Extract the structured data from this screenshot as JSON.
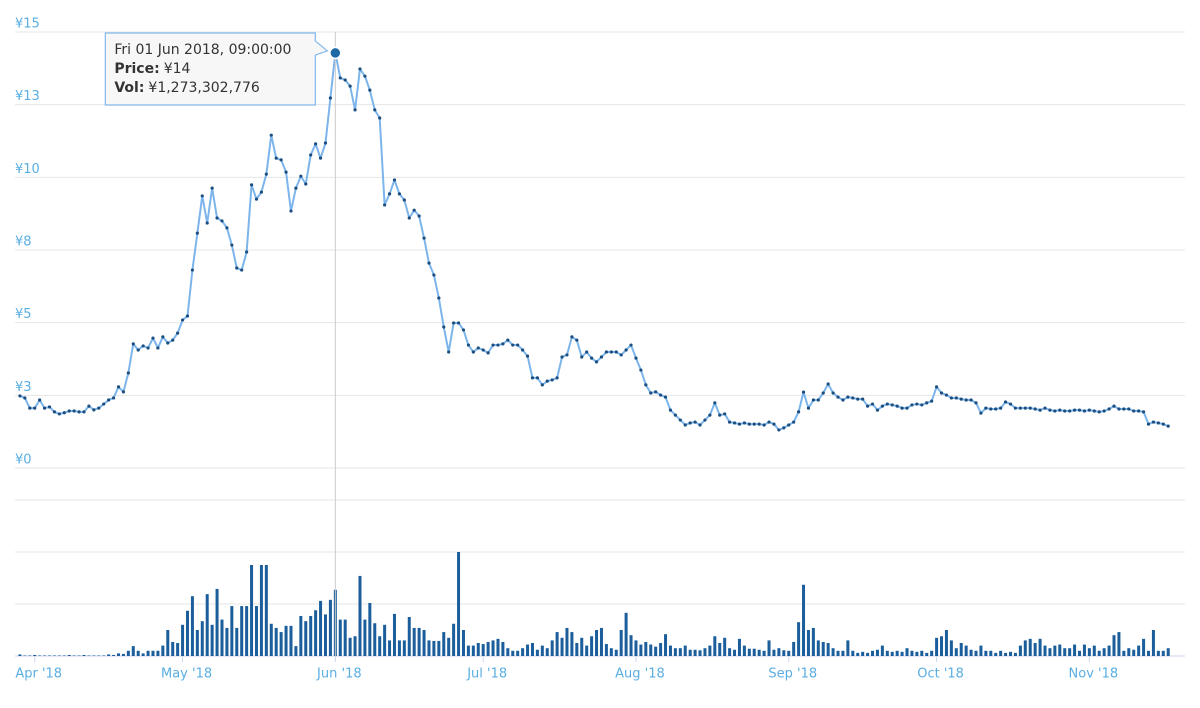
{
  "chart_data": {
    "type": "line",
    "x": [
      "2018-03-29",
      "2018-03-30",
      "2018-03-31",
      "2018-04-01",
      "2018-04-02",
      "2018-04-03",
      "2018-04-04",
      "2018-04-05",
      "2018-04-06",
      "2018-04-07",
      "2018-04-08",
      "2018-04-09",
      "2018-04-10",
      "2018-04-11",
      "2018-04-12",
      "2018-04-13",
      "2018-04-14",
      "2018-04-15",
      "2018-04-16",
      "2018-04-17",
      "2018-04-18",
      "2018-04-19",
      "2018-04-20",
      "2018-04-21",
      "2018-04-22",
      "2018-04-23",
      "2018-04-24",
      "2018-04-25",
      "2018-04-26",
      "2018-04-27",
      "2018-04-28",
      "2018-04-29",
      "2018-04-30",
      "2018-05-01",
      "2018-05-02",
      "2018-05-03",
      "2018-05-04",
      "2018-05-05",
      "2018-05-06",
      "2018-05-07",
      "2018-05-08",
      "2018-05-09",
      "2018-05-10",
      "2018-05-11",
      "2018-05-12",
      "2018-05-13",
      "2018-05-14",
      "2018-05-15",
      "2018-05-16",
      "2018-05-17",
      "2018-05-18",
      "2018-05-19",
      "2018-05-20",
      "2018-05-21",
      "2018-05-22",
      "2018-05-23",
      "2018-05-24",
      "2018-05-25",
      "2018-05-26",
      "2018-05-27",
      "2018-05-28",
      "2018-05-29",
      "2018-05-30",
      "2018-05-31",
      "2018-06-01",
      "2018-06-02",
      "2018-06-03",
      "2018-06-04",
      "2018-06-05",
      "2018-06-06",
      "2018-06-07",
      "2018-06-08",
      "2018-06-09",
      "2018-06-10",
      "2018-06-11",
      "2018-06-12",
      "2018-06-13",
      "2018-06-14",
      "2018-06-15",
      "2018-06-16",
      "2018-06-17",
      "2018-06-18",
      "2018-06-19",
      "2018-06-20",
      "2018-06-21",
      "2018-06-22",
      "2018-06-23",
      "2018-06-24",
      "2018-06-25",
      "2018-06-26",
      "2018-06-27",
      "2018-06-28",
      "2018-06-29",
      "2018-06-30",
      "2018-07-01",
      "2018-07-02",
      "2018-07-03",
      "2018-07-04",
      "2018-07-05",
      "2018-07-06",
      "2018-07-07",
      "2018-07-08",
      "2018-07-09",
      "2018-07-10",
      "2018-07-11",
      "2018-07-12",
      "2018-07-13",
      "2018-07-14",
      "2018-07-15",
      "2018-07-16",
      "2018-07-17",
      "2018-07-18",
      "2018-07-19",
      "2018-07-20",
      "2018-07-21",
      "2018-07-22",
      "2018-07-23",
      "2018-07-24",
      "2018-07-25",
      "2018-07-26",
      "2018-07-27",
      "2018-07-28",
      "2018-07-29",
      "2018-07-30",
      "2018-07-31",
      "2018-08-01",
      "2018-08-02",
      "2018-08-03",
      "2018-08-04",
      "2018-08-05",
      "2018-08-06",
      "2018-08-07",
      "2018-08-08",
      "2018-08-09",
      "2018-08-10",
      "2018-08-11",
      "2018-08-12",
      "2018-08-13",
      "2018-08-14",
      "2018-08-15",
      "2018-08-16",
      "2018-08-17",
      "2018-08-18",
      "2018-08-19",
      "2018-08-20",
      "2018-08-21",
      "2018-08-22",
      "2018-08-23",
      "2018-08-24",
      "2018-08-25",
      "2018-08-26",
      "2018-08-27",
      "2018-08-28",
      "2018-08-29",
      "2018-08-30",
      "2018-08-31",
      "2018-09-01",
      "2018-09-02",
      "2018-09-03",
      "2018-09-04",
      "2018-09-05",
      "2018-09-06",
      "2018-09-07",
      "2018-09-08",
      "2018-09-09",
      "2018-09-10",
      "2018-09-11",
      "2018-09-12",
      "2018-09-13",
      "2018-09-14",
      "2018-09-15",
      "2018-09-16",
      "2018-09-17",
      "2018-09-18",
      "2018-09-19",
      "2018-09-20",
      "2018-09-21",
      "2018-09-22",
      "2018-09-23",
      "2018-09-24",
      "2018-09-25",
      "2018-09-26",
      "2018-09-27",
      "2018-09-28",
      "2018-09-29",
      "2018-09-30",
      "2018-10-01",
      "2018-10-02",
      "2018-10-03",
      "2018-10-04",
      "2018-10-05",
      "2018-10-06",
      "2018-10-07",
      "2018-10-08",
      "2018-10-09",
      "2018-10-10",
      "2018-10-11",
      "2018-10-12",
      "2018-10-13",
      "2018-10-14",
      "2018-10-15",
      "2018-10-16",
      "2018-10-17",
      "2018-10-18",
      "2018-10-19",
      "2018-10-20",
      "2018-10-21",
      "2018-10-22",
      "2018-10-23",
      "2018-10-24",
      "2018-10-25",
      "2018-10-26",
      "2018-10-27",
      "2018-10-28",
      "2018-10-29",
      "2018-10-30",
      "2018-10-31",
      "2018-11-01",
      "2018-11-02",
      "2018-11-03",
      "2018-11-04",
      "2018-11-05",
      "2018-11-06",
      "2018-11-07",
      "2018-11-08",
      "2018-11-09",
      "2018-11-10",
      "2018-11-11",
      "2018-11-12",
      "2018-11-13",
      "2018-11-14",
      "2018-11-15",
      "2018-11-16",
      "2018-11-17"
    ],
    "xlim": [
      "2018-03-28",
      "2018-11-20"
    ],
    "xticks": [
      {
        "value": "2018-04-01",
        "label": "Apr '18"
      },
      {
        "value": "2018-05-01",
        "label": "May '18"
      },
      {
        "value": "2018-06-01",
        "label": "Jun '18"
      },
      {
        "value": "2018-07-01",
        "label": "Jul '18"
      },
      {
        "value": "2018-08-01",
        "label": "Aug '18"
      },
      {
        "value": "2018-09-01",
        "label": "Sep '18"
      },
      {
        "value": "2018-10-01",
        "label": "Oct '18"
      },
      {
        "value": "2018-11-01",
        "label": "Nov '18"
      }
    ],
    "ylim": [
      0,
      15
    ],
    "yticks": [
      {
        "value": 0,
        "label": "¥0"
      },
      {
        "value": 2.5,
        "label": "¥3"
      },
      {
        "value": 5,
        "label": "¥5"
      },
      {
        "value": 7.5,
        "label": "¥8"
      },
      {
        "value": 10,
        "label": "¥10"
      },
      {
        "value": 12.5,
        "label": "¥13"
      },
      {
        "value": 15,
        "label": "¥15"
      }
    ],
    "y2lim": [
      0,
      3000000000.0
    ],
    "y2ticks": [
      0,
      1000000000.0,
      2000000000.0,
      3000000000.0
    ],
    "grid": true,
    "series": [
      {
        "name": "Price:",
        "color": "#7cb5ec",
        "marker_color": "#1c4f80",
        "values": [
          2.48,
          2.41,
          2.06,
          2.06,
          2.34,
          2.06,
          2.1,
          1.93,
          1.86,
          1.9,
          1.96,
          1.96,
          1.93,
          1.93,
          2.13,
          2.0,
          2.06,
          2.2,
          2.34,
          2.41,
          2.79,
          2.62,
          3.27,
          4.27,
          4.06,
          4.2,
          4.13,
          4.47,
          4.13,
          4.51,
          4.3,
          4.4,
          4.64,
          5.09,
          5.23,
          6.81,
          8.08,
          9.36,
          8.43,
          9.63,
          8.6,
          8.5,
          8.26,
          7.67,
          6.88,
          6.81,
          7.43,
          9.74,
          9.25,
          9.49,
          10.11,
          11.45,
          10.66,
          10.6,
          10.18,
          8.84,
          9.63,
          10.04,
          9.77,
          10.77,
          11.15,
          10.66,
          11.18,
          12.73,
          14.28,
          13.42,
          13.35,
          13.14,
          12.32,
          13.73,
          13.48,
          13.0,
          12.32,
          12.04,
          9.05,
          9.43,
          9.91,
          9.43,
          9.22,
          8.6,
          8.87,
          8.67,
          7.91,
          7.05,
          6.64,
          5.85,
          4.85,
          3.99,
          4.99,
          4.99,
          4.75,
          4.23,
          3.99,
          4.13,
          4.06,
          3.96,
          4.23,
          4.23,
          4.27,
          4.4,
          4.23,
          4.23,
          4.06,
          3.85,
          3.1,
          3.1,
          2.86,
          2.99,
          3.03,
          3.1,
          3.82,
          3.89,
          4.51,
          4.4,
          3.82,
          3.99,
          3.78,
          3.65,
          3.82,
          3.99,
          3.99,
          3.99,
          3.89,
          4.06,
          4.23,
          3.78,
          3.37,
          2.86,
          2.58,
          2.62,
          2.51,
          2.44,
          1.99,
          1.82,
          1.65,
          1.48,
          1.55,
          1.58,
          1.48,
          1.65,
          1.82,
          2.24,
          1.82,
          1.86,
          1.58,
          1.55,
          1.51,
          1.55,
          1.51,
          1.51,
          1.51,
          1.48,
          1.58,
          1.51,
          1.31,
          1.38,
          1.48,
          1.58,
          1.93,
          2.61,
          2.06,
          2.34,
          2.34,
          2.58,
          2.89,
          2.58,
          2.44,
          2.34,
          2.44,
          2.41,
          2.37,
          2.37,
          2.13,
          2.2,
          1.99,
          2.13,
          2.2,
          2.17,
          2.13,
          2.06,
          2.06,
          2.17,
          2.2,
          2.17,
          2.24,
          2.3,
          2.79,
          2.58,
          2.51,
          2.41,
          2.41,
          2.37,
          2.34,
          2.34,
          2.24,
          1.89,
          2.06,
          2.03,
          2.03,
          2.06,
          2.27,
          2.2,
          2.06,
          2.06,
          2.06,
          2.06,
          2.03,
          1.99,
          2.06,
          1.99,
          1.96,
          1.99,
          1.96,
          1.96,
          1.99,
          1.99,
          1.96,
          1.99,
          1.96,
          1.93,
          1.96,
          2.03,
          2.13,
          2.03,
          2.03,
          2.03,
          1.96,
          1.96,
          1.93,
          1.51,
          1.58,
          1.55,
          1.51,
          1.44
        ]
      },
      {
        "name": "Vol:",
        "type": "bar",
        "axis": "y2",
        "color": "#1b5e9b",
        "values": [
          30000000.0,
          10000000.0,
          10000000.0,
          20000000.0,
          10000000.0,
          10000000.0,
          10000000.0,
          10000000.0,
          10000000.0,
          10000000.0,
          20000000.0,
          10000000.0,
          10000000.0,
          20000000.0,
          10000000.0,
          10000000.0,
          10000000.0,
          10000000.0,
          30000000.0,
          20000000.0,
          50000000.0,
          40000000.0,
          100000000.0,
          190000000.0,
          100000000.0,
          50000000.0,
          100000000.0,
          100000000.0,
          100000000.0,
          200000000.0,
          500000000.0,
          270000000.0,
          250000000.0,
          600000000.0,
          870000000.0,
          1150000000.0,
          500000000.0,
          670000000.0,
          1190000000.0,
          600000000.0,
          1290000000.0,
          700000000.0,
          540000000.0,
          960000000.0,
          540000000.0,
          960000000.0,
          960000000.0,
          1750000000.0,
          960000000.0,
          1750000000.0,
          1750000000.0,
          620000000.0,
          540000000.0,
          460000000.0,
          580000000.0,
          580000000.0,
          190000000.0,
          770000000.0,
          670000000.0,
          770000000.0,
          880000000.0,
          1060000000.0,
          800000000.0,
          1080000000.0,
          1273302776,
          700000000.0,
          700000000.0,
          350000000.0,
          380000000.0,
          1540000000.0,
          700000000.0,
          1020000000.0,
          630000000.0,
          380000000.0,
          600000000.0,
          300000000.0,
          810000000.0,
          300000000.0,
          300000000.0,
          750000000.0,
          540000000.0,
          540000000.0,
          500000000.0,
          300000000.0,
          290000000.0,
          290000000.0,
          460000000.0,
          350000000.0,
          620000000.0,
          2000000000.0,
          500000000.0,
          200000000.0,
          200000000.0,
          250000000.0,
          230000000.0,
          270000000.0,
          300000000.0,
          330000000.0,
          270000000.0,
          150000000.0,
          100000000.0,
          100000000.0,
          150000000.0,
          220000000.0,
          250000000.0,
          120000000.0,
          200000000.0,
          150000000.0,
          300000000.0,
          460000000.0,
          350000000.0,
          540000000.0,
          460000000.0,
          250000000.0,
          350000000.0,
          200000000.0,
          380000000.0,
          500000000.0,
          540000000.0,
          230000000.0,
          150000000.0,
          120000000.0,
          500000000.0,
          830000000.0,
          400000000.0,
          300000000.0,
          220000000.0,
          270000000.0,
          220000000.0,
          180000000.0,
          250000000.0,
          420000000.0,
          200000000.0,
          150000000.0,
          150000000.0,
          200000000.0,
          120000000.0,
          120000000.0,
          110000000.0,
          150000000.0,
          200000000.0,
          380000000.0,
          250000000.0,
          350000000.0,
          150000000.0,
          120000000.0,
          330000000.0,
          200000000.0,
          140000000.0,
          140000000.0,
          120000000.0,
          100000000.0,
          300000000.0,
          120000000.0,
          150000000.0,
          110000000.0,
          100000000.0,
          270000000.0,
          650000000.0,
          1370000000.0,
          500000000.0,
          540000000.0,
          300000000.0,
          270000000.0,
          250000000.0,
          150000000.0,
          100000000.0,
          100000000.0,
          300000000.0,
          100000000.0,
          60000000.0,
          80000000.0,
          60000000.0,
          100000000.0,
          120000000.0,
          200000000.0,
          100000000.0,
          80000000.0,
          100000000.0,
          80000000.0,
          150000000.0,
          100000000.0,
          80000000.0,
          100000000.0,
          60000000.0,
          100000000.0,
          350000000.0,
          380000000.0,
          500000000.0,
          300000000.0,
          150000000.0,
          250000000.0,
          200000000.0,
          120000000.0,
          100000000.0,
          200000000.0,
          100000000.0,
          100000000.0,
          60000000.0,
          100000000.0,
          60000000.0,
          80000000.0,
          60000000.0,
          200000000.0,
          300000000.0,
          330000000.0,
          250000000.0,
          330000000.0,
          200000000.0,
          150000000.0,
          200000000.0,
          220000000.0,
          150000000.0,
          150000000.0,
          220000000.0,
          100000000.0,
          220000000.0,
          150000000.0,
          200000000.0,
          100000000.0,
          150000000.0,
          200000000.0,
          400000000.0,
          460000000.0,
          100000000.0,
          150000000.0,
          120000000.0,
          200000000.0,
          330000000.0,
          100000000.0,
          500000000.0,
          100000000.0,
          100000000.0,
          150000000.0
        ]
      }
    ],
    "tooltip": {
      "x": "2018-06-01",
      "title": "Fri 01 Jun 2018, 09:00:00",
      "price": "¥14",
      "vol": "¥1,273,302,776"
    }
  }
}
